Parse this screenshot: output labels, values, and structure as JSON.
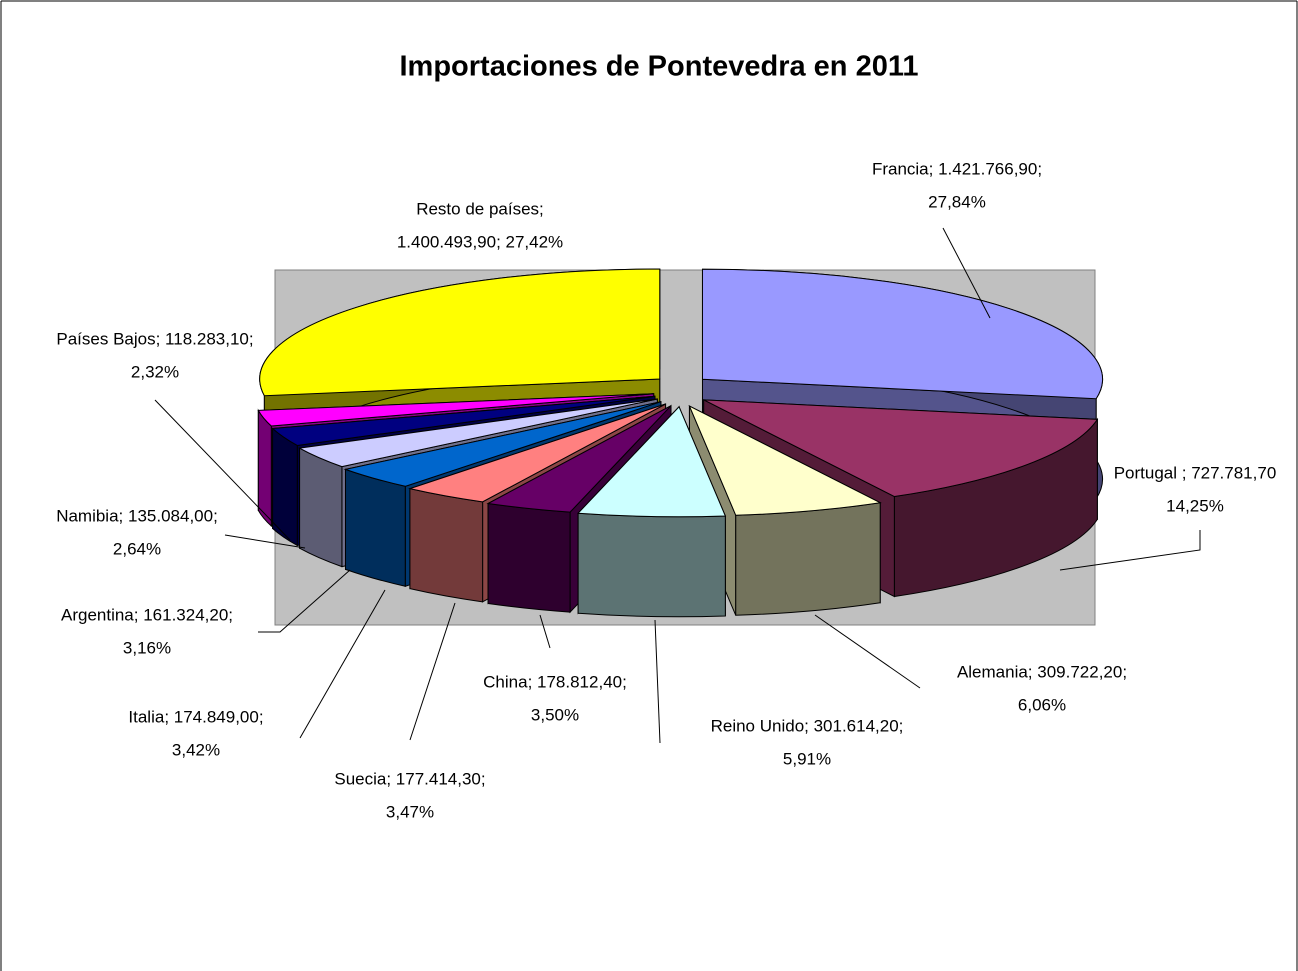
{
  "chart_data": {
    "type": "pie3d",
    "title": "Importaciones de Pontevedra en 2011",
    "values": [
      1421766.9,
      727781.7,
      309722.2,
      301614.2,
      178812.4,
      177414.3,
      174849.0,
      161324.2,
      135084.0,
      118283.1,
      1400493.9
    ],
    "value_labels": [
      [
        "Francia; 1.421.766,90;",
        "27,84%"
      ],
      [
        "Portugal ; 727.781,70",
        "14,25%"
      ],
      [
        "Alemania; 309.722,20;",
        "6,06%"
      ],
      [
        "Reino Unido; 301.614,20;",
        "5,91%"
      ],
      [
        "China; 178.812,40;",
        "3,50%"
      ],
      [
        "Suecia; 177.414,30;",
        "3,47%"
      ],
      [
        "Italia; 174.849,00;",
        "3,42%"
      ],
      [
        "Argentina; 161.324,20;",
        "3,16%"
      ],
      [
        "Namibia; 135.084,00;",
        "2,64%"
      ],
      [
        "Países Bajos; 118.283,10;",
        "2,32%"
      ],
      [
        "Resto de países;",
        "1.400.493,90; 27,42%"
      ]
    ],
    "colors": [
      "#9999ff",
      "#993366",
      "#ffffcc",
      "#ccffff",
      "#660066",
      "#ff8080",
      "#0066cc",
      "#ccccff",
      "#000080",
      "#ff00ff",
      "#ffff00"
    ]
  }
}
